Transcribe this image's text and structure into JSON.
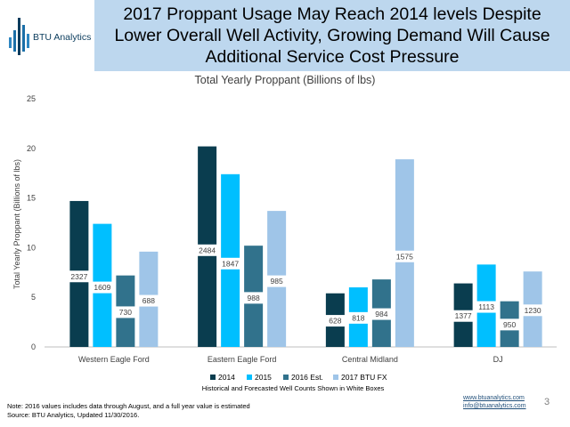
{
  "header": {
    "logo_text": "BTU Analytics",
    "title": "2017 Proppant Usage May Reach 2014 levels Despite Lower Overall Well Activity, Growing Demand Will Cause Additional Service Cost Pressure"
  },
  "chart_data": {
    "type": "bar",
    "title": "Total Yearly Proppant (Billions of lbs)",
    "ylabel": "Total Yearly Proppant (Billions of lbs)",
    "xlabel": "",
    "ylim": [
      0,
      25
    ],
    "yticks": [
      "0",
      "5",
      "10",
      "15",
      "20",
      "25"
    ],
    "grid": false,
    "legend_position": "bottom",
    "legend_note": "Historical and Forecasted Well Counts Shown in White Boxes",
    "categories": [
      "Western Eagle Ford",
      "Eastern Eagle Ford",
      "Central Midland",
      "DJ"
    ],
    "series": [
      {
        "name": "2014",
        "color": "#0a3d4f",
        "values": [
          14.7,
          20.2,
          5.4,
          6.4
        ],
        "well_counts": [
          "2327",
          "2484",
          "628",
          "1377"
        ]
      },
      {
        "name": "2015",
        "color": "#00bfff",
        "values": [
          12.4,
          17.4,
          6.0,
          8.3
        ],
        "well_counts": [
          "1609",
          "1847",
          "818",
          "1113"
        ]
      },
      {
        "name": "2016 Est.",
        "color": "#31728c",
        "values": [
          7.2,
          10.2,
          6.8,
          4.6
        ],
        "well_counts": [
          "730",
          "988",
          "984",
          "950"
        ]
      },
      {
        "name": "2017 BTU FX",
        "color": "#9fc5e8",
        "values": [
          9.6,
          13.7,
          18.9,
          7.6
        ],
        "well_counts": [
          "688",
          "985",
          "1575",
          "1230"
        ]
      }
    ]
  },
  "footer": {
    "note": "Note: 2016 values includes data through August, and a full year value is estimated",
    "source": "Source: BTU Analytics, Updated 11/30/2016.",
    "website": "www.btuanalytics.com",
    "email": "info@btuanalytics.com",
    "page_number": "3"
  }
}
